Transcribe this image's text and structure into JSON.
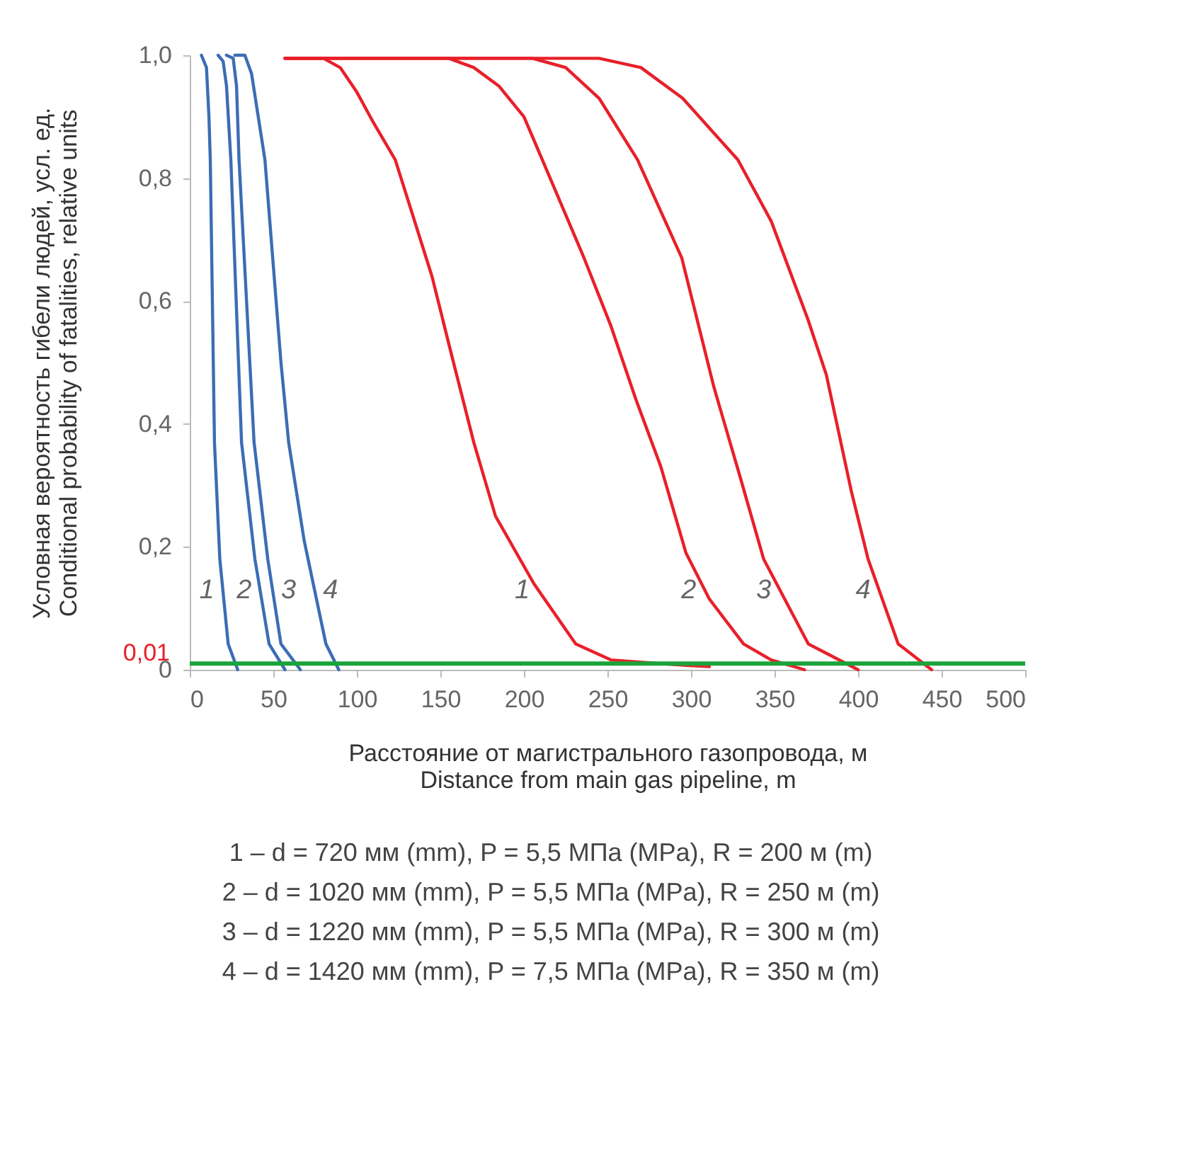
{
  "chart_data": {
    "type": "line",
    "xlabel": "Расстояние от магистрального газопровода, м\nDistance from main gas pipeline, m",
    "ylabel": "Условная вероятность гибели людей, усл. ед.\nConditional probability of fatalities, relative units",
    "xlim": [
      0,
      500
    ],
    "xticks": [
      0,
      50,
      100,
      150,
      200,
      250,
      300,
      350,
      400,
      450,
      500
    ],
    "ylim": [
      0,
      1
    ],
    "yticks": [
      {
        "value": 0,
        "label": "0"
      },
      {
        "value": 0.2,
        "label": "0,2"
      },
      {
        "value": 0.4,
        "label": "0,4"
      },
      {
        "value": 0.6,
        "label": "0,6"
      },
      {
        "value": 0.8,
        "label": "0,8"
      },
      {
        "value": 1,
        "label": "1,0"
      }
    ],
    "grid": false,
    "marker": "none",
    "line_style": "solid",
    "series": [
      {
        "name": "1",
        "color": "#3c6db5",
        "x": [
          7,
          10,
          11.5,
          12.3,
          14.8,
          18,
          23,
          28.7
        ],
        "values": [
          1.0,
          0.98,
          0.9,
          0.83,
          0.37,
          0.18,
          0.042,
          0
        ]
      },
      {
        "name": "2",
        "color": "#3c6db5",
        "x": [
          17,
          20,
          22,
          24.6,
          31,
          39,
          47.5,
          57
        ],
        "values": [
          1.0,
          0.99,
          0.95,
          0.83,
          0.37,
          0.18,
          0.042,
          0
        ]
      },
      {
        "name": "3",
        "color": "#3c6db5",
        "x": [
          22,
          26,
          28,
          29.5,
          38.5,
          46.7,
          54.6,
          66.2
        ],
        "values": [
          1.0,
          0.995,
          0.95,
          0.83,
          0.37,
          0.18,
          0.042,
          0
        ]
      },
      {
        "name": "4",
        "color": "#3c6db5",
        "x": [
          27,
          33,
          37,
          41,
          45,
          54.6,
          59.2,
          68.5,
          81.5,
          89.2
        ],
        "values": [
          1.0,
          1.0,
          0.97,
          0.9,
          0.83,
          0.5,
          0.37,
          0.21,
          0.042,
          0
        ]
      },
      {
        "name": "1",
        "color": "#e8202a",
        "x": [
          57,
          80,
          90,
          100,
          110,
          123,
          145,
          156,
          170,
          183,
          206,
          231,
          252,
          297,
          311
        ],
        "values": [
          0.995,
          0.995,
          0.98,
          0.94,
          0.89,
          0.83,
          0.64,
          0.52,
          0.37,
          0.25,
          0.14,
          0.042,
          0.016,
          0.007,
          0.005
        ]
      },
      {
        "name": "2",
        "color": "#e8202a",
        "x": [
          57,
          155,
          170,
          185,
          200,
          211,
          236,
          252,
          267,
          282,
          297,
          311,
          331.5,
          348,
          368
        ],
        "values": [
          0.995,
          0.995,
          0.98,
          0.95,
          0.9,
          0.83,
          0.67,
          0.56,
          0.44,
          0.33,
          0.19,
          0.115,
          0.042,
          0.016,
          0
        ]
      },
      {
        "name": "3",
        "color": "#e8202a",
        "x": [
          57,
          205,
          225,
          245,
          268,
          294.5,
          313.7,
          329.8,
          343.5,
          370.2,
          400
        ],
        "values": [
          0.995,
          0.995,
          0.98,
          0.93,
          0.83,
          0.67,
          0.46,
          0.31,
          0.18,
          0.042,
          0
        ]
      },
      {
        "name": "4",
        "color": "#e8202a",
        "x": [
          57,
          245,
          270,
          295,
          328,
          348,
          370,
          381,
          396,
          406,
          424,
          444
        ],
        "values": [
          0.995,
          0.995,
          0.98,
          0.93,
          0.83,
          0.73,
          0.57,
          0.48,
          0.29,
          0.18,
          0.042,
          0
        ]
      }
    ],
    "ref_lines": [
      {
        "axis": "y",
        "value": 0.01,
        "label": "0,01",
        "color": "#1aa33a"
      }
    ],
    "annotations": [
      "1 – d = 720 мм (mm), P = 5,5 МПа (MPa), R = 200 м (m)",
      "2 – d = 1020 мм (mm), P = 5,5 МПа (MPa), R = 250 м (m)",
      "3 – d = 1220 мм (mm), P = 5,5 МПа (MPa), R = 300 м (m)",
      "4 – d = 1420 мм (mm), P = 7,5 МПа (MPa), R = 350 м (m)"
    ]
  }
}
